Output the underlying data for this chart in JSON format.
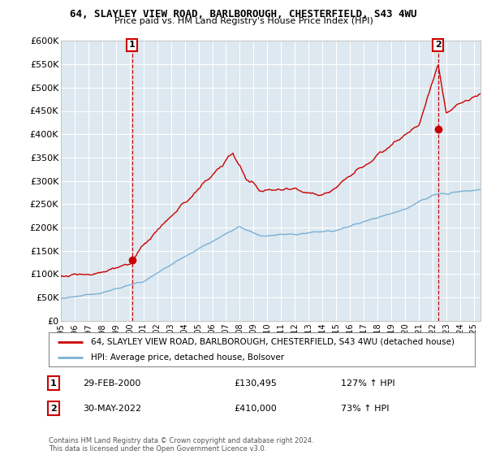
{
  "title": "64, SLAYLEY VIEW ROAD, BARLBOROUGH, CHESTERFIELD, S43 4WU",
  "subtitle": "Price paid vs. HM Land Registry's House Price Index (HPI)",
  "ylim": [
    0,
    600000
  ],
  "yticks": [
    0,
    50000,
    100000,
    150000,
    200000,
    250000,
    300000,
    350000,
    400000,
    450000,
    500000,
    550000,
    600000
  ],
  "ytick_labels": [
    "£0",
    "£50K",
    "£100K",
    "£150K",
    "£200K",
    "£250K",
    "£300K",
    "£350K",
    "£400K",
    "£450K",
    "£500K",
    "£550K",
    "£600K"
  ],
  "property_color": "#cc0000",
  "hpi_color": "#7ab0d4",
  "chart_bg": "#dde8f0",
  "fig_bg": "#ffffff",
  "grid_color": "#ffffff",
  "sale1_year": 2000.16,
  "sale1_price": 130495,
  "sale2_year": 2022.41,
  "sale2_price": 410000,
  "legend_property": "64, SLAYLEY VIEW ROAD, BARLBOROUGH, CHESTERFIELD, S43 4WU (detached house)",
  "legend_hpi": "HPI: Average price, detached house, Bolsover",
  "copyright": "Contains HM Land Registry data © Crown copyright and database right 2024.\nThis data is licensed under the Open Government Licence v3.0.",
  "xstart": 1995.0,
  "xend": 2025.5
}
